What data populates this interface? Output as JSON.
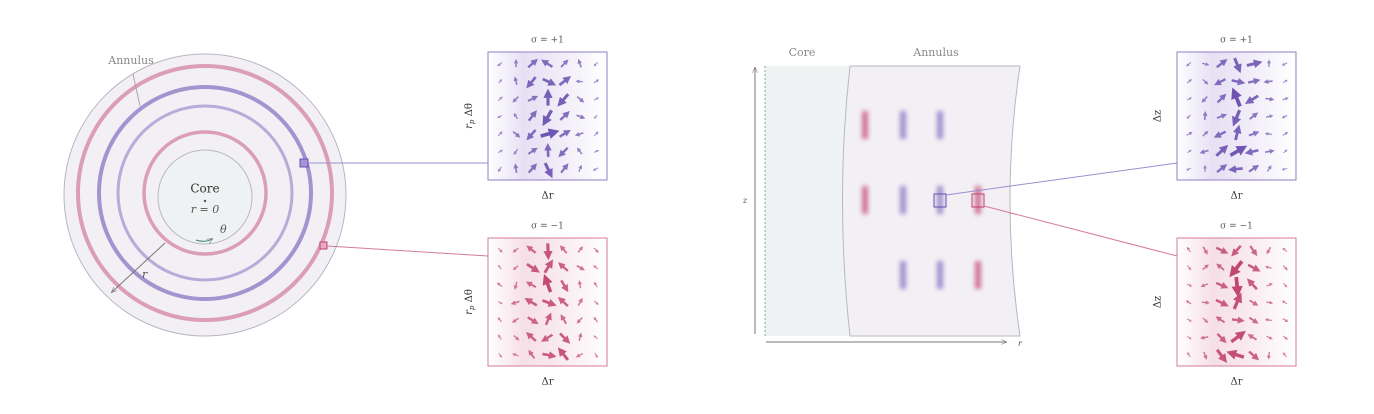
{
  "left": {
    "annulus_label": "Annulus",
    "core_label": "Core",
    "origin_label": "r = 0",
    "theta_label": "θ",
    "r_label": "r"
  },
  "left_panels": [
    {
      "title": "σ = +1",
      "ylabel": {
        "base": "r",
        "sub": "p",
        "rest": " Δθ"
      },
      "xlabel": "Δr"
    },
    {
      "title": "σ = −1",
      "ylabel": {
        "base": "r",
        "sub": "p",
        "rest": " Δθ"
      },
      "xlabel": "Δr"
    }
  ],
  "right": {
    "core_label": "Core",
    "annulus_label": "Annulus",
    "z_label": "z",
    "r_label": "r"
  },
  "right_panels": [
    {
      "title": "σ = +1",
      "ylabel": "Δz",
      "xlabel": "Δr"
    },
    {
      "title": "σ = −1",
      "ylabel": "Δz",
      "xlabel": "Δr"
    }
  ]
}
